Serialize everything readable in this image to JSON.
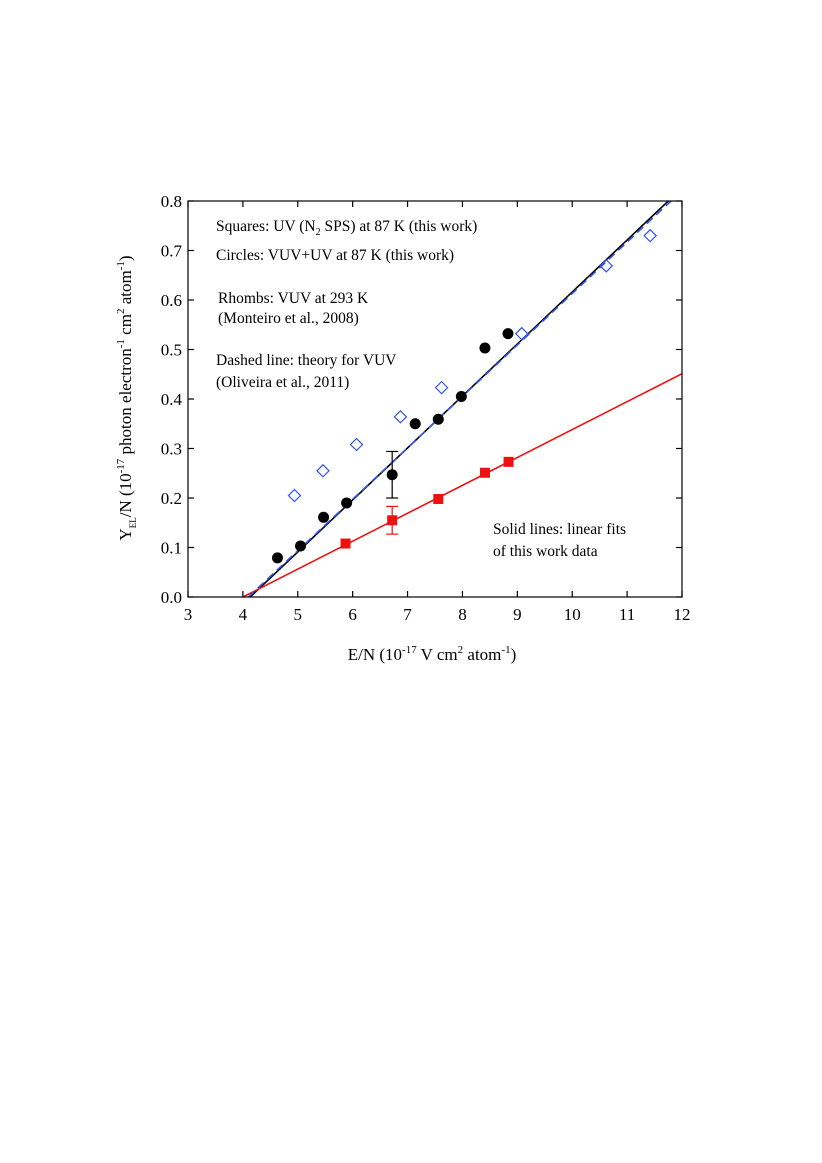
{
  "chart_data": {
    "type": "scatter",
    "xlabel": {
      "base": "E/N (10",
      "exp1": "-17",
      "mid": " V cm",
      "exp2": "2",
      "mid2": " atom",
      "exp3": "-1",
      "end": ")"
    },
    "ylabel": {
      "base": "Y",
      "sub": "EL",
      "mid": "/N (10",
      "exp1": "-17",
      "mid2": " photon electron",
      "exp2": "-1",
      "mid3": " cm",
      "exp3": "2",
      "mid4": " atom",
      "exp4": "-1",
      "end": ")"
    },
    "xlim": [
      3,
      12
    ],
    "ylim": [
      0,
      0.8
    ],
    "x_ticks": [
      "3",
      "4",
      "5",
      "6",
      "7",
      "8",
      "9",
      "10",
      "11",
      "12"
    ],
    "y_ticks": [
      "0.0",
      "0.1",
      "0.2",
      "0.3",
      "0.4",
      "0.5",
      "0.6",
      "0.7",
      "0.8"
    ],
    "grid": false,
    "series": [
      {
        "name": "Squares: UV (N2 SPS) at 87 K (this work)",
        "marker": "square",
        "color": "#ee1111",
        "points": [
          [
            5.87,
            0.108
          ],
          [
            6.72,
            0.155
          ],
          [
            7.56,
            0.198
          ],
          [
            8.41,
            0.251
          ],
          [
            8.84,
            0.273
          ]
        ],
        "error_bars": [
          {
            "x": 6.72,
            "low": 0.127,
            "high": 0.183
          }
        ]
      },
      {
        "name": "Circles: VUV+UV at 87 K (this work)",
        "marker": "circle",
        "color": "#000000",
        "points": [
          [
            4.63,
            0.079
          ],
          [
            5.05,
            0.103
          ],
          [
            5.47,
            0.161
          ],
          [
            5.89,
            0.19
          ],
          [
            6.72,
            0.247
          ],
          [
            7.14,
            0.35
          ],
          [
            7.56,
            0.359
          ],
          [
            7.98,
            0.405
          ],
          [
            8.41,
            0.503
          ],
          [
            8.83,
            0.532
          ]
        ],
        "error_bars": [
          {
            "x": 6.72,
            "low": 0.2,
            "high": 0.294
          }
        ]
      },
      {
        "name": "Rhombs: VUV at 293 K (Monteiro et al., 2008)",
        "marker": "diamond-open",
        "color": "#3355ee",
        "points": [
          [
            4.94,
            0.205
          ],
          [
            5.46,
            0.255
          ],
          [
            6.07,
            0.308
          ],
          [
            6.87,
            0.364
          ],
          [
            7.62,
            0.423
          ],
          [
            9.08,
            0.532
          ],
          [
            10.62,
            0.669
          ],
          [
            11.42,
            0.73
          ]
        ]
      }
    ],
    "lines": [
      {
        "name": "Solid line: linear fit (circles)",
        "style": "solid",
        "color": "#000000",
        "x": [
          4.0,
          11.75
        ],
        "y": [
          -0.014,
          0.8
        ]
      },
      {
        "name": "Solid line: linear fit (squares)",
        "style": "solid",
        "color": "#ee1111",
        "x": [
          4.0,
          12.0
        ],
        "y": [
          0.0,
          0.451
        ]
      },
      {
        "name": "Dashed line: theory for VUV (Oliveira et al., 2011)",
        "style": "dashed",
        "color": "#3355ee",
        "x": [
          4.1,
          11.8
        ],
        "y": [
          0.0,
          0.8
        ]
      }
    ],
    "annotations": {
      "squares_pre": "Squares: UV (N",
      "squares_sub": "2",
      "squares_post": " SPS) at 87 K (this work)",
      "circles": "Circles: VUV+UV at 87 K (this work)",
      "rhombs1": "Rhombs: VUV at 293 K",
      "rhombs2": "(Monteiro et al., 2008)",
      "dashed1": "Dashed line: theory for VUV",
      "dashed2": "(Oliveira et al., 2011)",
      "solid1": "Solid lines: linear fits",
      "solid2": "of this work data"
    }
  }
}
